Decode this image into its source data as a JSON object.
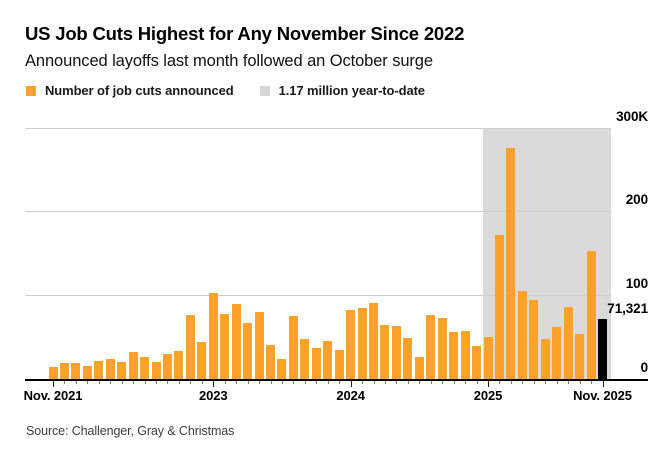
{
  "header": {
    "title": "US Job Cuts Highest for Any November Since 2022",
    "subtitle": "Announced layoffs last month followed an October surge"
  },
  "legend": {
    "items": [
      {
        "label": "Number of job cuts announced",
        "color": "#FCA22A"
      },
      {
        "label": "1.17 million year-to-date",
        "color": "#D6D6D6"
      }
    ]
  },
  "source": "Source: Challenger, Gray & Christmas",
  "colors": {
    "bar": "#FCA22A",
    "highlight_bar": "#000000",
    "ytd_band": "#DADADA",
    "gridline": "#CDCDCD",
    "axis": "#000000"
  },
  "chart_data": {
    "type": "bar",
    "title": "US Job Cuts Highest for Any November Since 2022",
    "subtitle": "Announced layoffs last month followed an October surge",
    "xlabel": "",
    "ylabel": "Job cuts announced",
    "ylim": [
      0,
      300000
    ],
    "grid": true,
    "x": [
      "2021-11",
      "2021-12",
      "2022-01",
      "2022-02",
      "2022-03",
      "2022-04",
      "2022-05",
      "2022-06",
      "2022-07",
      "2022-08",
      "2022-09",
      "2022-10",
      "2022-11",
      "2022-12",
      "2023-01",
      "2023-02",
      "2023-03",
      "2023-04",
      "2023-05",
      "2023-06",
      "2023-07",
      "2023-08",
      "2023-09",
      "2023-10",
      "2023-11",
      "2023-12",
      "2024-01",
      "2024-02",
      "2024-03",
      "2024-04",
      "2024-05",
      "2024-06",
      "2024-07",
      "2024-08",
      "2024-09",
      "2024-10",
      "2024-11",
      "2024-12",
      "2025-01",
      "2025-02",
      "2025-03",
      "2025-04",
      "2025-05",
      "2025-06",
      "2025-07",
      "2025-08",
      "2025-09",
      "2025-10",
      "2025-11"
    ],
    "values": [
      14875,
      19052,
      19064,
      15245,
      21387,
      24286,
      20712,
      32517,
      25810,
      20485,
      29989,
      33843,
      76835,
      43651,
      102943,
      77770,
      89703,
      66995,
      80089,
      40709,
      23697,
      75151,
      47457,
      36836,
      45510,
      34817,
      82307,
      84638,
      90309,
      64789,
      63816,
      48786,
      25885,
      75891,
      72821,
      55597,
      57727,
      38792,
      49795,
      172017,
      275240,
      105441,
      93816,
      47999,
      62075,
      85979,
      54064,
      153074,
      71321
    ],
    "series_name": "Number of job cuts announced",
    "y_ticks": [
      {
        "value": 0,
        "label": "0"
      },
      {
        "value": 100000,
        "label": "100"
      },
      {
        "value": 200000,
        "label": "200"
      },
      {
        "value": 300000,
        "label": "300K"
      }
    ],
    "x_tick_labels": [
      {
        "index": 0,
        "label": "Nov. 2021"
      },
      {
        "index": 14,
        "label": "2023"
      },
      {
        "index": 26,
        "label": "2024"
      },
      {
        "index": 38,
        "label": "2025"
      },
      {
        "index": 48,
        "label": "Nov. 2025"
      }
    ],
    "highlight": {
      "index": 48,
      "label": "71,321",
      "color": "#000000"
    },
    "ytd_band": {
      "start_index": 38,
      "end_index": 48,
      "color": "#DADADA",
      "label": "1.17 million year-to-date"
    },
    "legend_position": "top-left"
  }
}
